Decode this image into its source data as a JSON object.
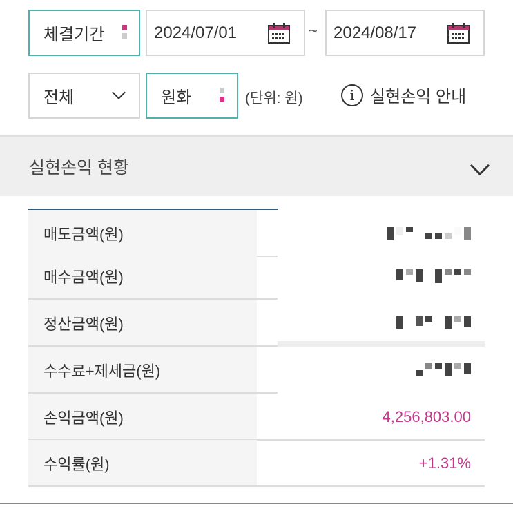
{
  "filters": {
    "period_label": "체결기간",
    "start_date": "2024/07/01",
    "separator": "~",
    "end_date": "2024/08/17",
    "type_select": "전체",
    "currency_select": "원화",
    "unit_note": "(단위: 원)",
    "info_link": "실현손익 안내"
  },
  "section": {
    "title": "실현손익 현황"
  },
  "rows": [
    {
      "label": "매도금액(원)",
      "value": null
    },
    {
      "label": "매수금액(원)",
      "value": null
    },
    {
      "label": "정산금액(원)",
      "value": null
    },
    {
      "label": "수수료+제세금(원)",
      "value": null
    },
    {
      "label": "손익금액(원)",
      "value": "4,256,803.00"
    },
    {
      "label": "수익률(원)",
      "value": "+1.31%"
    }
  ],
  "colors": {
    "accent_teal": "#4fb3ad",
    "value_pink": "#c0398a",
    "calendar": "#b03a6e"
  }
}
